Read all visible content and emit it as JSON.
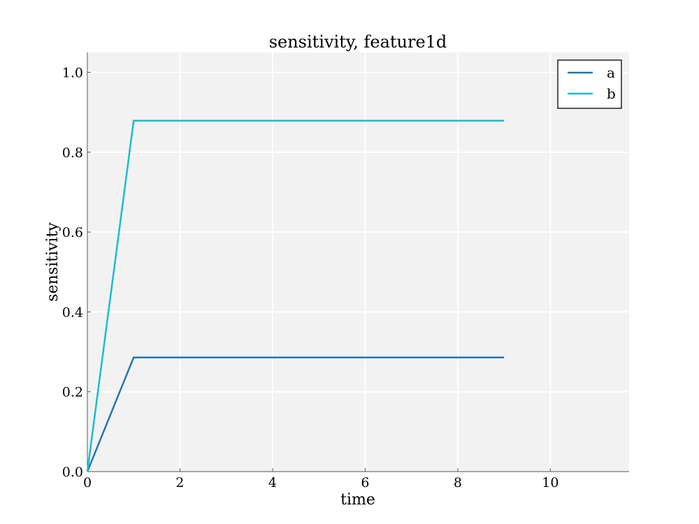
{
  "chart_data": {
    "type": "line",
    "title": "sensitivity, feature1d",
    "xlabel": "time",
    "ylabel": "sensitivity",
    "xlim": [
      0,
      11.7
    ],
    "ylim": [
      0,
      1.05
    ],
    "xticks": [
      0,
      2,
      4,
      6,
      8,
      10
    ],
    "yticks": [
      0.0,
      0.2,
      0.4,
      0.6,
      0.8,
      1.0
    ],
    "xtick_labels": [
      "0",
      "2",
      "4",
      "6",
      "8",
      "10"
    ],
    "ytick_labels": [
      "0.0",
      "0.2",
      "0.4",
      "0.6",
      "0.8",
      "1.0"
    ],
    "grid": true,
    "legend_position": "top-right",
    "background_color": "#f2f2f2",
    "grid_color": "#ffffff",
    "x": [
      0,
      1,
      2,
      3,
      4,
      5,
      6,
      7,
      8,
      9
    ],
    "series": [
      {
        "name": "a",
        "color": "#1f77b4",
        "values": [
          0.0,
          0.286,
          0.286,
          0.286,
          0.286,
          0.286,
          0.286,
          0.286,
          0.286,
          0.286
        ]
      },
      {
        "name": "b",
        "color": "#17becf",
        "values": [
          0.0,
          0.879,
          0.879,
          0.879,
          0.879,
          0.879,
          0.879,
          0.879,
          0.879,
          0.879
        ]
      }
    ]
  }
}
